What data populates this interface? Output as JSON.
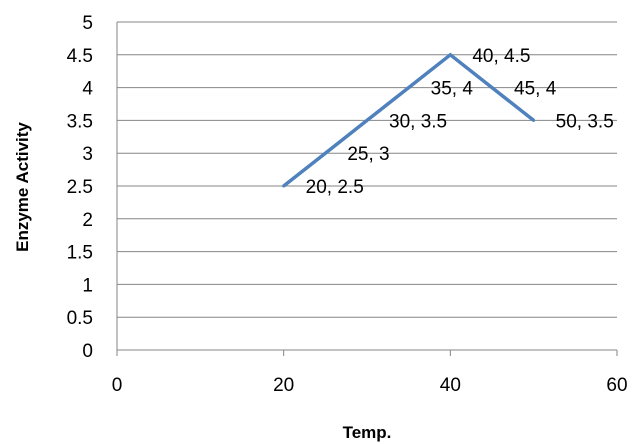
{
  "chart_data": {
    "type": "scatter",
    "xlabel": "Temp.",
    "ylabel": "Enzyme Activity",
    "xlim": [
      0,
      60
    ],
    "ylim": [
      0,
      5
    ],
    "xticks": [
      0,
      20,
      40,
      60
    ],
    "yticks": [
      0,
      0.5,
      1,
      1.5,
      2,
      2.5,
      3,
      3.5,
      4,
      4.5,
      5
    ],
    "x_tick_labels": [
      "0",
      "20",
      "40",
      "60"
    ],
    "y_tick_labels": [
      "0",
      "0.5",
      "1",
      "1.5",
      "2",
      "2.5",
      "3",
      "3.5",
      "4",
      "4.5",
      "5"
    ],
    "grid": "horizontal",
    "line_color": "#4F81BD",
    "series": [
      {
        "x": [
          20,
          25,
          30,
          35,
          40,
          45,
          50
        ],
        "y": [
          2.5,
          3,
          3.5,
          4,
          4.5,
          4,
          3.5
        ],
        "labels": [
          "20, 2.5",
          "25, 3",
          "30, 3.5",
          "35, 4",
          "40, 4.5",
          "45, 4",
          "50, 3.5"
        ]
      }
    ]
  }
}
